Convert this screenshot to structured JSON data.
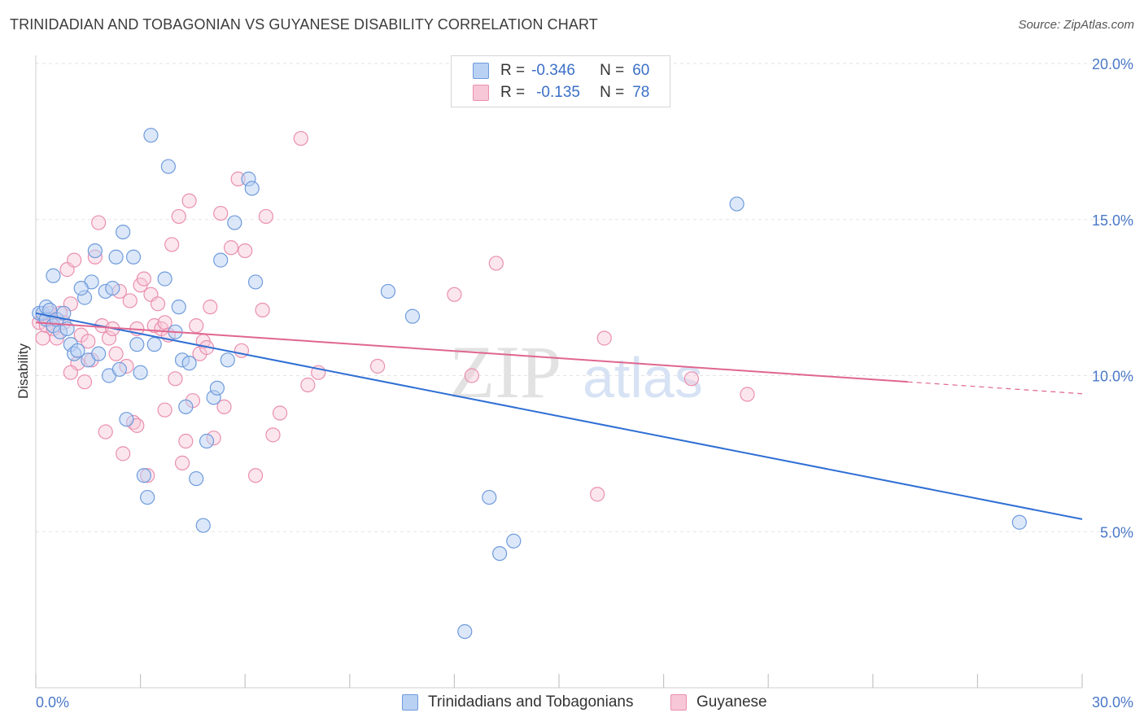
{
  "header": {
    "title": "TRINIDADIAN AND TOBAGONIAN VS GUYANESE DISABILITY CORRELATION CHART",
    "source": "Source: ZipAtlas.com"
  },
  "legend_top": {
    "rows": [
      {
        "r_label": "R =",
        "r_value": "-0.346",
        "n_label": "N =",
        "n_value": "60"
      },
      {
        "r_label": "R =",
        "r_value": "-0.135",
        "n_label": "N =",
        "n_value": "78"
      }
    ]
  },
  "legend_bottom": {
    "items": [
      "Trinidadians and Tobagonians",
      "Guyanese"
    ]
  },
  "watermark": {
    "zip": "ZIP",
    "atlas": "atlas"
  },
  "chart_data": {
    "type": "scatter",
    "ylabel": "Disability",
    "xlim": [
      0,
      30
    ],
    "ylim": [
      0,
      20
    ],
    "x_tick_labels": [
      "0.0%",
      "30.0%"
    ],
    "y_ticks": [
      5,
      10,
      15,
      20
    ],
    "y_tick_labels": [
      "5.0%",
      "10.0%",
      "15.0%",
      "20.0%"
    ],
    "grid": true,
    "colors": {
      "series1_fill": "#b9d1f3",
      "series1_stroke": "#6f9bdc",
      "series1_line": "#2f6fd4",
      "series2_fill": "#f7c7d7",
      "series2_stroke": "#ea8fb0",
      "series2_line": "#e0668f"
    },
    "series": [
      {
        "name": "Trinidadians and Tobagonians",
        "trend": {
          "x": [
            0,
            30
          ],
          "y": [
            12.0,
            5.4
          ]
        },
        "points": [
          [
            0.1,
            12.0
          ],
          [
            0.2,
            12.0
          ],
          [
            0.3,
            12.2
          ],
          [
            0.3,
            11.8
          ],
          [
            0.4,
            12.1
          ],
          [
            0.5,
            11.6
          ],
          [
            0.6,
            11.8
          ],
          [
            0.7,
            11.4
          ],
          [
            0.8,
            12.0
          ],
          [
            0.9,
            11.5
          ],
          [
            1.0,
            11.0
          ],
          [
            1.1,
            10.7
          ],
          [
            1.2,
            10.8
          ],
          [
            1.4,
            12.5
          ],
          [
            1.5,
            10.5
          ],
          [
            1.6,
            13.0
          ],
          [
            1.7,
            14.0
          ],
          [
            1.8,
            10.7
          ],
          [
            2.0,
            12.7
          ],
          [
            2.1,
            10.0
          ],
          [
            2.2,
            12.8
          ],
          [
            2.3,
            13.8
          ],
          [
            2.4,
            10.2
          ],
          [
            2.5,
            14.6
          ],
          [
            2.6,
            8.6
          ],
          [
            2.8,
            13.8
          ],
          [
            2.9,
            11.0
          ],
          [
            3.0,
            10.1
          ],
          [
            3.1,
            6.8
          ],
          [
            3.2,
            6.1
          ],
          [
            3.3,
            17.7
          ],
          [
            3.4,
            11.0
          ],
          [
            3.7,
            13.1
          ],
          [
            3.8,
            16.7
          ],
          [
            4.0,
            11.4
          ],
          [
            4.1,
            12.2
          ],
          [
            4.2,
            10.5
          ],
          [
            4.3,
            9.0
          ],
          [
            4.4,
            10.4
          ],
          [
            4.6,
            6.7
          ],
          [
            4.8,
            5.2
          ],
          [
            4.9,
            7.9
          ],
          [
            5.1,
            9.3
          ],
          [
            5.2,
            9.6
          ],
          [
            5.3,
            13.7
          ],
          [
            5.5,
            10.5
          ],
          [
            5.7,
            14.9
          ],
          [
            6.1,
            16.3
          ],
          [
            6.2,
            16.0
          ],
          [
            6.3,
            13.0
          ],
          [
            0.5,
            13.2
          ],
          [
            1.3,
            12.8
          ],
          [
            10.1,
            12.7
          ],
          [
            10.8,
            11.9
          ],
          [
            12.3,
            1.8
          ],
          [
            13.0,
            6.1
          ],
          [
            13.3,
            4.3
          ],
          [
            13.7,
            4.7
          ],
          [
            20.1,
            15.5
          ],
          [
            28.2,
            5.3
          ]
        ]
      },
      {
        "name": "Guyanese",
        "trend": {
          "x": [
            0,
            25
          ],
          "y": [
            11.7,
            9.8
          ]
        },
        "points": [
          [
            0.1,
            11.7
          ],
          [
            0.2,
            11.9
          ],
          [
            0.3,
            11.6
          ],
          [
            0.4,
            11.8
          ],
          [
            0.5,
            11.5
          ],
          [
            0.6,
            11.2
          ],
          [
            0.7,
            12.0
          ],
          [
            0.8,
            11.7
          ],
          [
            0.9,
            13.4
          ],
          [
            1.0,
            12.3
          ],
          [
            1.1,
            13.7
          ],
          [
            1.2,
            10.4
          ],
          [
            1.3,
            11.3
          ],
          [
            1.4,
            9.8
          ],
          [
            1.5,
            11.1
          ],
          [
            1.6,
            10.5
          ],
          [
            1.7,
            13.8
          ],
          [
            1.8,
            14.9
          ],
          [
            1.9,
            11.6
          ],
          [
            2.0,
            8.2
          ],
          [
            2.1,
            11.2
          ],
          [
            2.2,
            11.5
          ],
          [
            2.3,
            10.7
          ],
          [
            2.4,
            12.7
          ],
          [
            2.5,
            7.5
          ],
          [
            2.6,
            10.3
          ],
          [
            2.7,
            12.4
          ],
          [
            2.8,
            8.5
          ],
          [
            2.9,
            11.5
          ],
          [
            3.0,
            12.9
          ],
          [
            3.1,
            13.1
          ],
          [
            3.2,
            6.8
          ],
          [
            3.3,
            12.6
          ],
          [
            3.4,
            11.6
          ],
          [
            3.5,
            12.3
          ],
          [
            3.6,
            11.5
          ],
          [
            3.7,
            11.7
          ],
          [
            3.8,
            11.3
          ],
          [
            3.9,
            14.2
          ],
          [
            4.0,
            9.9
          ],
          [
            4.1,
            15.1
          ],
          [
            4.2,
            7.2
          ],
          [
            4.3,
            7.9
          ],
          [
            4.4,
            15.6
          ],
          [
            4.5,
            9.2
          ],
          [
            4.6,
            11.6
          ],
          [
            4.7,
            10.7
          ],
          [
            4.8,
            11.1
          ],
          [
            4.9,
            10.9
          ],
          [
            5.0,
            12.2
          ],
          [
            5.1,
            8.0
          ],
          [
            5.3,
            15.2
          ],
          [
            5.4,
            9.0
          ],
          [
            5.6,
            14.1
          ],
          [
            5.8,
            16.3
          ],
          [
            5.9,
            10.8
          ],
          [
            6.0,
            14.0
          ],
          [
            6.3,
            6.8
          ],
          [
            6.5,
            12.1
          ],
          [
            6.6,
            15.1
          ],
          [
            6.8,
            8.1
          ],
          [
            7.0,
            8.8
          ],
          [
            7.6,
            17.6
          ],
          [
            7.8,
            9.7
          ],
          [
            8.1,
            10.1
          ],
          [
            9.8,
            10.3
          ],
          [
            12.0,
            12.6
          ],
          [
            12.5,
            10.0
          ],
          [
            13.2,
            13.6
          ],
          [
            16.1,
            6.2
          ],
          [
            16.3,
            11.2
          ],
          [
            18.8,
            9.9
          ],
          [
            20.4,
            9.4
          ],
          [
            0.2,
            11.2
          ],
          [
            0.4,
            12.0
          ],
          [
            1.0,
            10.1
          ],
          [
            2.9,
            8.4
          ],
          [
            3.7,
            8.9
          ]
        ]
      }
    ]
  }
}
